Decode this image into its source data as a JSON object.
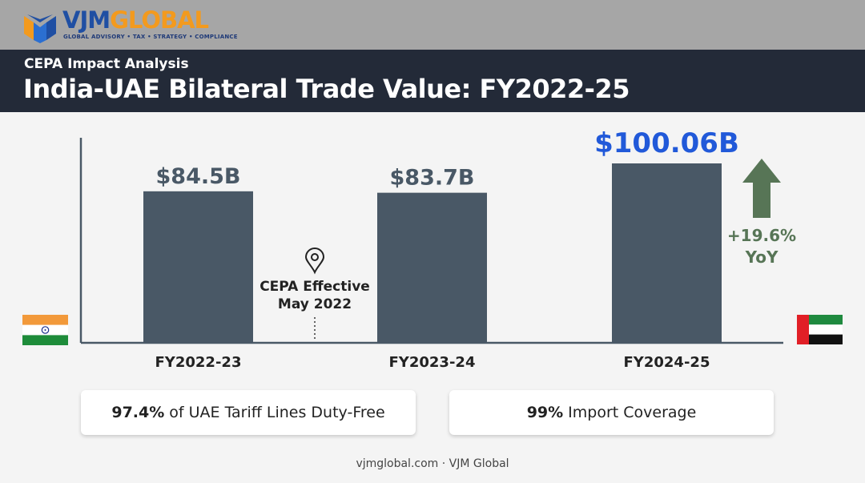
{
  "brand": {
    "name_part1": "VJM",
    "name_part2": "GLOBAL",
    "tagline": "GLOBAL ADVISORY • TAX • STRATEGY • COMPLIANCE"
  },
  "header": {
    "subtitle": "CEPA Impact Analysis",
    "title": "India-UAE Bilateral Trade Value: FY2022-25"
  },
  "chart_data": {
    "type": "bar",
    "categories": [
      "FY2022-23",
      "FY2023-24",
      "FY2024-25"
    ],
    "values": [
      84.5,
      83.7,
      100.06
    ],
    "data_labels": [
      "$84.5B",
      "$83.7B",
      "$100.06B"
    ],
    "ylim": [
      0,
      110
    ],
    "highlight_index": 2,
    "annotations": {
      "cepa_line1": "CEPA Effective",
      "cepa_line2": "May 2022",
      "yoy_change": "+19.6%",
      "yoy_label": "YoY"
    },
    "colors": {
      "bar": "#495866",
      "highlight_label": "#2159d9",
      "label": "#495866",
      "growth": "#577556",
      "axis": "#495866"
    }
  },
  "stats": [
    {
      "value": "97.4%",
      "text": "of UAE Tariff Lines Duty-Free"
    },
    {
      "value": "99%",
      "text": "Import Coverage"
    }
  ],
  "footer": {
    "text": "vjmglobal.com · VJM Global"
  }
}
